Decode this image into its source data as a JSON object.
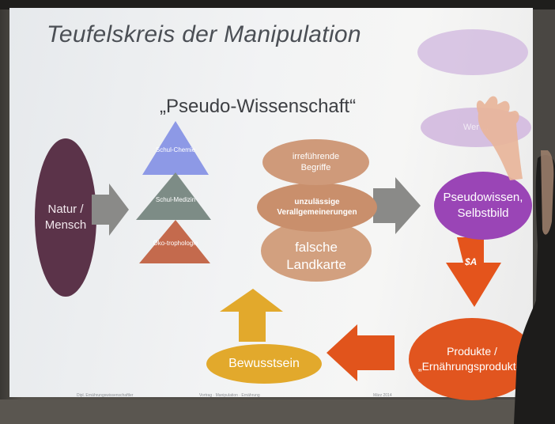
{
  "slide": {
    "title": "Teufelskreis der Manipulation",
    "subtitle": "„Pseudo-Wissenschaft“",
    "natur": "Natur / Mensch",
    "triangles": [
      {
        "label": "Schul-Chemie",
        "color": "#8d99e6"
      },
      {
        "label": "Schul-Medizin",
        "color": "#7d8c86"
      },
      {
        "label": "Öko-trophologie",
        "color": "#c46a4d"
      }
    ],
    "bubbles": [
      "irreführende Begriffe",
      "unzulässige Verallgemeinerungen",
      "falsche Landkarte"
    ],
    "pseudowissen": "Pseudowissen, Selbstbild",
    "dollar_symbol": "$A",
    "produkte": "Produkte / „Ernährungsprodukte“",
    "bewusstsein": "Bewusstsein",
    "ghost_top": "",
    "ghost_mid": "Wer ...",
    "footer": [
      "Dipl. Ernährungswissenschaftler",
      "Vortrag · Manipulation · Ernährung",
      "März 2014"
    ]
  },
  "colors": {
    "natur": "#5b3349",
    "bubble": "#cf9a7a",
    "pseudo": "#9a45b6",
    "produkte": "#e1551f",
    "bewusstsein": "#e2a92c",
    "arrow_gray": "#8a8a88"
  }
}
